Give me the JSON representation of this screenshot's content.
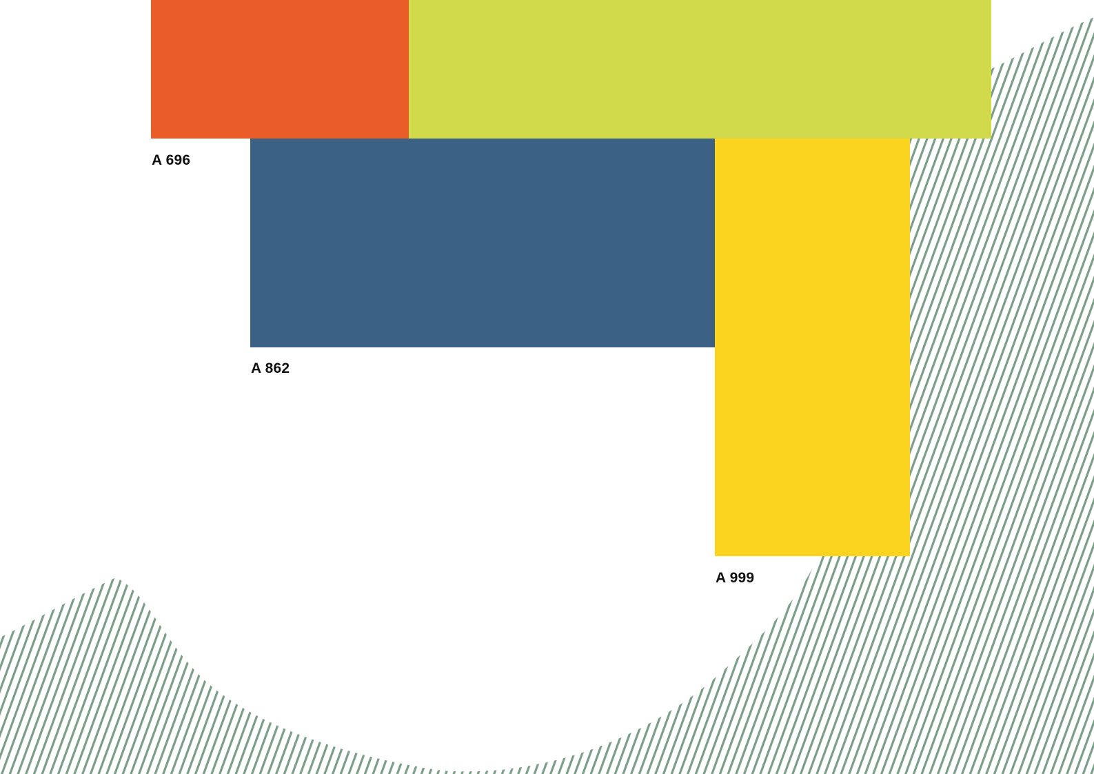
{
  "colors": {
    "background": "#ffffff",
    "stripes": "#7a9e88",
    "swatch_orange": "#ea5c28",
    "swatch_lime": "#d1da4a",
    "swatch_blue": "#3b6284",
    "swatch_yellow": "#fbd41f"
  },
  "swatches": [
    {
      "name": "orange",
      "code": "A 696"
    },
    {
      "name": "lime",
      "code": ""
    },
    {
      "name": "blue",
      "code": "A 862"
    },
    {
      "name": "yellow",
      "code": "A 999"
    }
  ],
  "labels": {
    "orange_code": "A 696",
    "blue_code": "A 862",
    "yellow_code": "A 999"
  },
  "decoration": {
    "pattern": "diagonal-stripes",
    "shape": "wave"
  }
}
